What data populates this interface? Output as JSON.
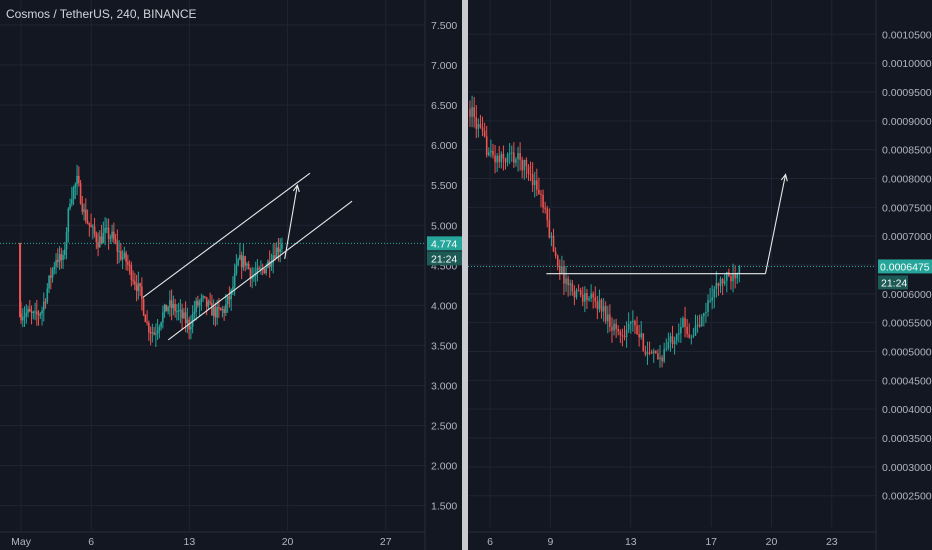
{
  "colors": {
    "background": "#131722",
    "up": "#26a69a",
    "down": "#ef5350",
    "grid": "#1f2432",
    "axis_text": "#b2b5be",
    "drawing": "#e8e8e8",
    "price_line": "#26a69a",
    "divider": "#c9cbd1"
  },
  "left": {
    "title": "Cosmos / TetherUS, 240, BINANCE",
    "price_tag": "4.774",
    "countdown": "21:24",
    "countdown_prefix": "4.",
    "chart_data": {
      "type": "candlestick",
      "symbol": "Cosmos / TetherUS",
      "interval": "240",
      "exchange": "BINANCE",
      "y_ticks": [
        "7.500",
        "7.000",
        "6.500",
        "6.000",
        "5.500",
        "5.000",
        "4.500",
        "4.000",
        "3.500",
        "3.000",
        "2.500",
        "2.000",
        "1.500"
      ],
      "y_tick_values": [
        7.5,
        7.0,
        6.5,
        6.0,
        5.5,
        5.0,
        4.5,
        4.0,
        3.5,
        3.0,
        2.5,
        2.0,
        1.5
      ],
      "ylim": [
        1.37,
        7.65
      ],
      "x_ticks": [
        "May",
        "6",
        "13",
        "20",
        "27"
      ],
      "x_tick_days": [
        1,
        6,
        13,
        20,
        27
      ],
      "xlim": [
        -0.5,
        29.8
      ],
      "last_price": 4.774,
      "trend_points": [
        [
          1,
          3.9
        ],
        [
          1.5,
          3.9
        ],
        [
          2,
          3.85
        ],
        [
          2.5,
          3.95
        ],
        [
          3,
          4.3
        ],
        [
          3.5,
          4.6
        ],
        [
          4,
          4.55
        ],
        [
          4.5,
          5.35
        ],
        [
          5,
          5.55
        ],
        [
          5.5,
          5.15
        ],
        [
          6,
          4.95
        ],
        [
          6.5,
          4.8
        ],
        [
          7,
          4.9
        ],
        [
          7.5,
          4.85
        ],
        [
          8,
          4.65
        ],
        [
          8.5,
          4.55
        ],
        [
          9,
          4.35
        ],
        [
          9.5,
          4.15
        ],
        [
          10,
          3.75
        ],
        [
          10.5,
          3.65
        ],
        [
          11,
          3.85
        ],
        [
          11.5,
          4.0
        ],
        [
          12,
          3.95
        ],
        [
          12.5,
          3.85
        ],
        [
          13,
          3.75
        ],
        [
          13.5,
          4.0
        ],
        [
          14,
          4.05
        ],
        [
          14.5,
          3.95
        ],
        [
          15,
          3.9
        ],
        [
          15.5,
          3.95
        ],
        [
          16,
          4.15
        ],
        [
          16.5,
          4.55
        ],
        [
          17,
          4.55
        ],
        [
          17.5,
          4.35
        ],
        [
          18,
          4.4
        ],
        [
          18.5,
          4.5
        ],
        [
          19,
          4.65
        ],
        [
          19.6,
          4.774
        ]
      ],
      "drawings": {
        "channel_upper": [
          [
            9.7,
            4.1
          ],
          [
            21.6,
            5.65
          ]
        ],
        "channel_lower": [
          [
            11.5,
            3.57
          ],
          [
            24.6,
            5.3
          ]
        ],
        "arrow": [
          [
            19.8,
            4.58
          ],
          [
            20.7,
            5.5
          ]
        ]
      }
    }
  },
  "right": {
    "price_tag": "0.0006475",
    "countdown": "21:24",
    "chart_data": {
      "type": "candlestick",
      "y_ticks": [
        "0.0010500",
        "0.0010000",
        "0.0009500",
        "0.0009000",
        "0.0008500",
        "0.0008000",
        "0.0007500",
        "0.0007000",
        "0.0006500",
        "0.0006000",
        "0.0005500",
        "0.0005000",
        "0.0004500",
        "0.0004000",
        "0.0003500",
        "0.0003000",
        "0.0002500"
      ],
      "y_tick_values": [
        0.00105,
        0.001,
        0.00095,
        0.0009,
        0.00085,
        0.0008,
        0.00075,
        0.0007,
        0.00065,
        0.0006,
        0.00055,
        0.0005,
        0.00045,
        0.0004,
        0.00035,
        0.0003,
        0.00025
      ],
      "ylim": [
        0.00022,
        0.00108
      ],
      "x_ticks": [
        "6",
        "9",
        "13",
        "17",
        "20",
        "23"
      ],
      "x_tick_days": [
        6,
        9,
        13,
        17,
        20,
        23
      ],
      "xlim": [
        4.9,
        25.2
      ],
      "last_price": 0.0006475,
      "trend_points": [
        [
          5,
          0.00092
        ],
        [
          5.5,
          0.00088
        ],
        [
          6,
          0.00084
        ],
        [
          6.5,
          0.00083
        ],
        [
          7,
          0.00084
        ],
        [
          7.5,
          0.00083
        ],
        [
          8,
          0.00081
        ],
        [
          8.5,
          0.00077
        ],
        [
          9,
          0.0007
        ],
        [
          9.5,
          0.00064
        ],
        [
          10,
          0.00061
        ],
        [
          10.5,
          0.0006
        ],
        [
          11,
          0.00059
        ],
        [
          11.5,
          0.00058
        ],
        [
          12,
          0.00055
        ],
        [
          12.5,
          0.00053
        ],
        [
          13,
          0.00055
        ],
        [
          13.5,
          0.00052
        ],
        [
          14,
          0.00049
        ],
        [
          14.5,
          0.00049
        ],
        [
          15,
          0.00052
        ],
        [
          15.5,
          0.00055
        ],
        [
          16,
          0.00053
        ],
        [
          16.5,
          0.00055
        ],
        [
          17,
          0.0006
        ],
        [
          17.5,
          0.00062
        ],
        [
          18,
          0.00063
        ],
        [
          18.4,
          0.0006475
        ]
      ],
      "drawings": {
        "neckline": [
          [
            8.8,
            0.000635
          ],
          [
            19.7,
            0.000635
          ]
        ],
        "arrow": [
          [
            19.7,
            0.000635
          ],
          [
            20.7,
            0.000807
          ]
        ]
      }
    }
  }
}
